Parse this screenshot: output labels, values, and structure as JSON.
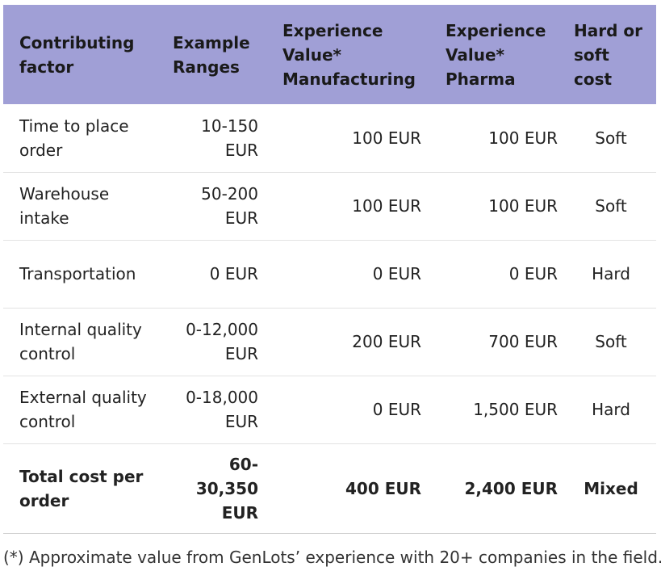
{
  "table": {
    "headers": [
      "Contributing factor",
      "Example Ranges",
      "Experience Value* Manufacturing",
      "Experience Value* Pharma",
      "Hard or soft cost"
    ],
    "rows": [
      {
        "factor": "Time to place order",
        "range": "10-150 EUR",
        "manufacturing": "100 EUR",
        "pharma": "100 EUR",
        "cost_type": "Soft"
      },
      {
        "factor": "Warehouse intake",
        "range": "50-200 EUR",
        "manufacturing": "100 EUR",
        "pharma": "100 EUR",
        "cost_type": "Soft"
      },
      {
        "factor": "Transportation",
        "range": "0 EUR",
        "manufacturing": "0 EUR",
        "pharma": "0 EUR",
        "cost_type": "Hard"
      },
      {
        "factor": "Internal quality control",
        "range": "0-12,000 EUR",
        "manufacturing": "200 EUR",
        "pharma": "700 EUR",
        "cost_type": "Soft"
      },
      {
        "factor": "External quality control",
        "range": "0-18,000 EUR",
        "manufacturing": "0 EUR",
        "pharma": "1,500 EUR",
        "cost_type": "Hard"
      }
    ],
    "total": {
      "factor": "Total cost per order",
      "range": "60-30,350 EUR",
      "manufacturing": "400 EUR",
      "pharma": "2,400 EUR",
      "cost_type": "Mixed"
    }
  },
  "footnote": "(*) Approximate value from GenLots’ experience with 20+ companies in the field.",
  "colors": {
    "header_bg": "#a09fd6"
  }
}
